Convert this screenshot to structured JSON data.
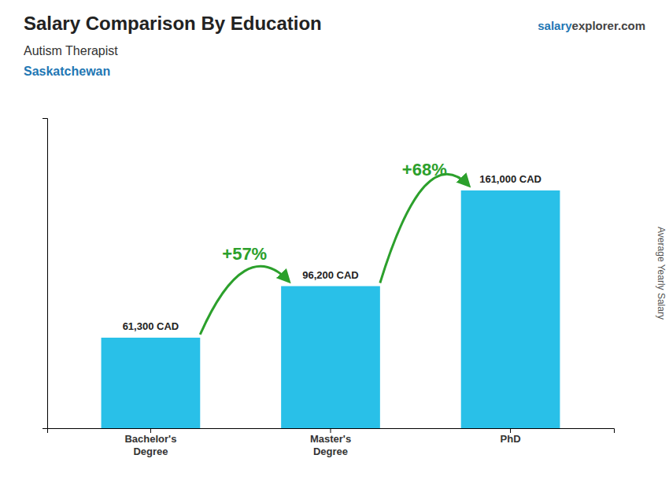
{
  "chart_data": {
    "type": "bar",
    "title": "Salary Comparison By Education",
    "subtitle": [
      "Autism Therapist",
      "Saskatchewan"
    ],
    "y_label": "Average Yearly Salary",
    "categories": [
      "Bachelor's\nDegree",
      "Master's\nDegree",
      "PhD"
    ],
    "values": [
      61300,
      96200,
      161000
    ],
    "value_labels": [
      "61,300 CAD",
      "96,200 CAD",
      "161,000 CAD"
    ],
    "data_labels": true,
    "color": "#29c0e8",
    "ylim": [
      0,
      210000
    ],
    "tick_labels": "x",
    "annotations": [
      {
        "type": "arrow",
        "text": "+57%"
      },
      {
        "type": "arrow",
        "text": "+68%"
      },
      {
        "type": "watermark",
        "text": [
          "salary",
          "explorer.com"
        ]
      }
    ]
  }
}
